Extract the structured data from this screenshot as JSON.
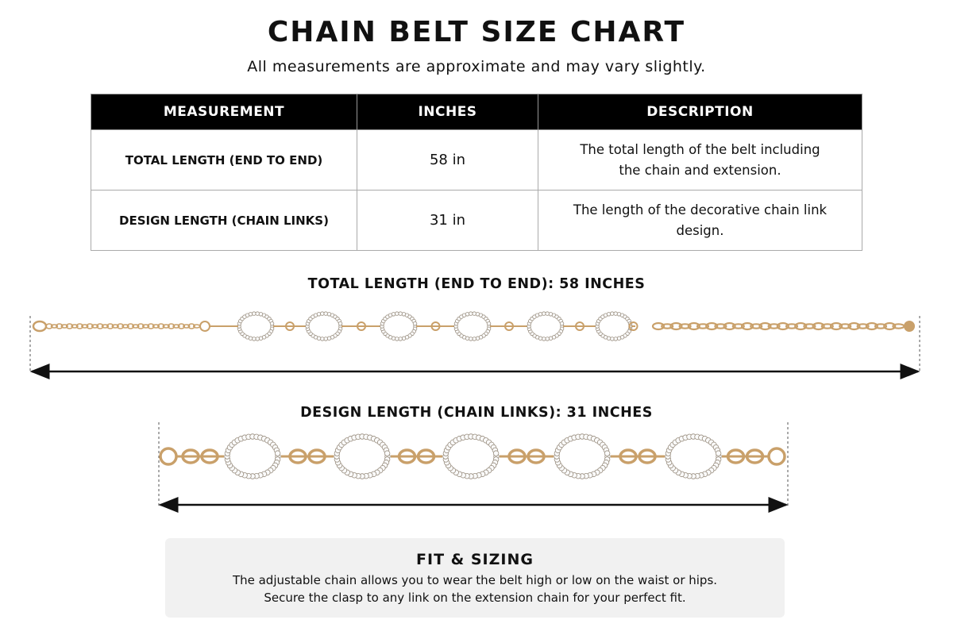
{
  "header": {
    "title": "CHAIN BELT SIZE CHART",
    "subtitle": "All measurements are approximate and may vary slightly."
  },
  "table": {
    "headers": [
      "MEASUREMENT",
      "INCHES",
      "DESCRIPTION"
    ],
    "rows": [
      [
        "TOTAL LENGTH (END TO END)",
        "58 in",
        "The total length of the belt including the chain and extension."
      ],
      [
        "DESIGN LENGTH (CHAIN LINKS)",
        "31 in",
        "The length of the decorative chain link design."
      ]
    ]
  },
  "diagrams": [
    {
      "label": "TOTAL LENGTH (END TO END): 58 INCHES"
    },
    {
      "label": "DESIGN LENGTH (CHAIN LINKS): 31 INCHES"
    }
  ],
  "fit": {
    "title": "FIT & SIZING",
    "lines": [
      "The adjustable chain allows you to wear the belt high or low on the waist or hips.",
      "Secure the clasp to any link on the extension chain for your perfect fit."
    ]
  }
}
